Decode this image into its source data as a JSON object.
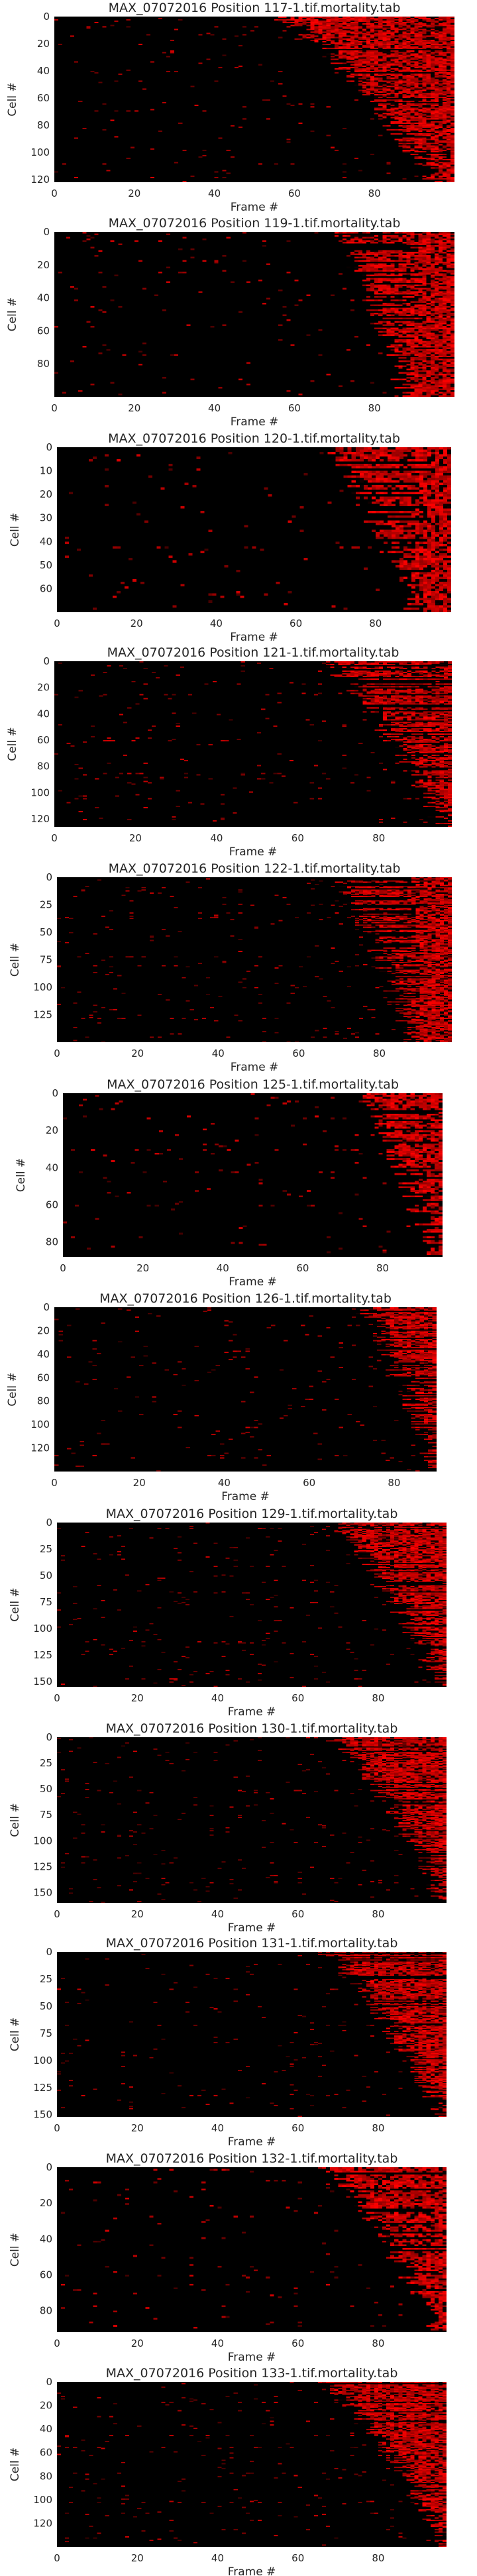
{
  "chart_data": [
    {
      "type": "heatmap",
      "title": "MAX_07072016 Position 117-1.tif.mortality.tab",
      "xlabel": "Frame #",
      "ylabel": "Cell #",
      "xlim": [
        0,
        100
      ],
      "ylim": [
        0,
        122
      ],
      "x_ticks": [
        0,
        20,
        40,
        60,
        80
      ],
      "y_ticks": [
        0,
        20,
        40,
        60,
        80,
        100,
        120
      ],
      "colormap": [
        "#000000",
        "#ff0000"
      ],
      "onset_start_frame": 56,
      "onset_end_frame": 95,
      "late_onset_cells": 0.1,
      "grid": false,
      "legend": "none"
    },
    {
      "type": "heatmap",
      "title": "MAX_07072016 Position 119-1.tif.mortality.tab",
      "xlabel": "Frame #",
      "ylabel": "Cell #",
      "xlim": [
        0,
        100
      ],
      "ylim": [
        0,
        100
      ],
      "x_ticks": [
        0,
        20,
        40,
        60,
        80
      ],
      "y_ticks": [
        0,
        20,
        40,
        60,
        80
      ],
      "colormap": [
        "#000000",
        "#ff0000"
      ],
      "onset_start_frame": 69,
      "onset_end_frame": 88,
      "late_onset_cells": 0.3,
      "grid": false,
      "legend": "none"
    },
    {
      "type": "heatmap",
      "title": "MAX_07072016 Position 120-1.tif.mortality.tab",
      "xlabel": "Frame #",
      "ylabel": "Cell #",
      "xlim": [
        0,
        99
      ],
      "ylim": [
        0,
        70
      ],
      "x_ticks": [
        0,
        20,
        40,
        60,
        80
      ],
      "y_ticks": [
        0,
        10,
        20,
        30,
        40,
        50,
        60
      ],
      "colormap": [
        "#000000",
        "#ff0000"
      ],
      "onset_start_frame": 68,
      "onset_end_frame": 90,
      "late_onset_cells": 0.25,
      "grid": false,
      "legend": "none"
    },
    {
      "type": "heatmap",
      "title": "MAX_07072016 Position 121-1.tif.mortality.tab",
      "xlabel": "Frame #",
      "ylabel": "Cell #",
      "xlim": [
        0,
        98
      ],
      "ylim": [
        0,
        126
      ],
      "x_ticks": [
        0,
        20,
        40,
        60,
        80
      ],
      "y_ticks": [
        0,
        20,
        40,
        60,
        80,
        100,
        120
      ],
      "colormap": [
        "#000000",
        "#ff0000"
      ],
      "onset_start_frame": 66,
      "onset_end_frame": 96,
      "late_onset_cells": 0.15,
      "grid": false,
      "legend": "none"
    },
    {
      "type": "heatmap",
      "title": "MAX_07072016 Position 122-1.tif.mortality.tab",
      "xlabel": "Frame #",
      "ylabel": "Cell #",
      "xlim": [
        0,
        98
      ],
      "ylim": [
        0,
        150
      ],
      "x_ticks": [
        0,
        20,
        40,
        60,
        80
      ],
      "y_ticks": [
        0,
        25,
        50,
        75,
        100,
        125
      ],
      "colormap": [
        "#000000",
        "#ff0000"
      ],
      "onset_start_frame": 68,
      "onset_end_frame": 88,
      "late_onset_cells": 0.35,
      "grid": false,
      "legend": "none"
    },
    {
      "type": "heatmap",
      "title": "MAX_07072016 Position 125-1.tif.mortality.tab",
      "xlabel": "Frame #",
      "ylabel": "Cell #",
      "xlim": [
        0,
        95
      ],
      "ylim": [
        0,
        88
      ],
      "x_ticks": [
        0,
        20,
        40,
        60,
        80
      ],
      "y_ticks": [
        0,
        20,
        40,
        60,
        80
      ],
      "colormap": [
        "#000000",
        "#ff0000"
      ],
      "onset_start_frame": 74,
      "onset_end_frame": 93,
      "late_onset_cells": 0.2,
      "grid": false,
      "legend": "none"
    },
    {
      "type": "heatmap",
      "title": "MAX_07072016 Position 126-1.tif.mortality.tab",
      "xlabel": "Frame #",
      "ylabel": "Cell #",
      "xlim": [
        0,
        90
      ],
      "ylim": [
        0,
        140
      ],
      "x_ticks": [
        0,
        20,
        40,
        60,
        80
      ],
      "y_ticks": [
        0,
        20,
        40,
        60,
        80,
        100,
        120
      ],
      "colormap": [
        "#000000",
        "#ff0000"
      ],
      "onset_start_frame": 72,
      "onset_end_frame": 90,
      "late_onset_cells": 0.15,
      "grid": false,
      "legend": "none"
    },
    {
      "type": "heatmap",
      "title": "MAX_07072016 Position 129-1.tif.mortality.tab",
      "xlabel": "Frame #",
      "ylabel": "Cell #",
      "xlim": [
        0,
        97
      ],
      "ylim": [
        0,
        155
      ],
      "x_ticks": [
        0,
        20,
        40,
        60,
        80
      ],
      "y_ticks": [
        0,
        25,
        50,
        75,
        100,
        125,
        150
      ],
      "colormap": [
        "#000000",
        "#ff0000"
      ],
      "onset_start_frame": 68,
      "onset_end_frame": 96,
      "late_onset_cells": 0.1,
      "grid": false,
      "legend": "none"
    },
    {
      "type": "heatmap",
      "title": "MAX_07072016 Position 130-1.tif.mortality.tab",
      "xlabel": "Frame #",
      "ylabel": "Cell #",
      "xlim": [
        0,
        97
      ],
      "ylim": [
        0,
        160
      ],
      "x_ticks": [
        0,
        20,
        40,
        60,
        80
      ],
      "y_ticks": [
        0,
        25,
        50,
        75,
        100,
        125,
        150
      ],
      "colormap": [
        "#000000",
        "#ff0000"
      ],
      "onset_start_frame": 68,
      "onset_end_frame": 96,
      "late_onset_cells": 0.1,
      "grid": false,
      "legend": "none"
    },
    {
      "type": "heatmap",
      "title": "MAX_07072016 Position 131-1.tif.mortality.tab",
      "xlabel": "Frame #",
      "ylabel": "Cell #",
      "xlim": [
        0,
        97
      ],
      "ylim": [
        0,
        152
      ],
      "x_ticks": [
        0,
        20,
        40,
        60,
        80
      ],
      "y_ticks": [
        0,
        25,
        50,
        75,
        100,
        125,
        150
      ],
      "colormap": [
        "#000000",
        "#ff0000"
      ],
      "onset_start_frame": 66,
      "onset_end_frame": 96,
      "late_onset_cells": 0.1,
      "grid": false,
      "legend": "none"
    },
    {
      "type": "heatmap",
      "title": "MAX_07072016 Position 132-1.tif.mortality.tab",
      "xlabel": "Frame #",
      "ylabel": "Cell #",
      "xlim": [
        0,
        97
      ],
      "ylim": [
        0,
        92
      ],
      "x_ticks": [
        0,
        20,
        40,
        60,
        80
      ],
      "y_ticks": [
        0,
        20,
        40,
        60,
        80
      ],
      "colormap": [
        "#000000",
        "#ff0000"
      ],
      "onset_start_frame": 67,
      "onset_end_frame": 95,
      "late_onset_cells": 0.15,
      "grid": false,
      "legend": "none"
    },
    {
      "type": "heatmap",
      "title": "MAX_07072016 Position 133-1.tif.mortality.tab",
      "xlabel": "Frame #",
      "ylabel": "Cell #",
      "xlim": [
        0,
        97
      ],
      "ylim": [
        0,
        140
      ],
      "x_ticks": [
        0,
        20,
        40,
        60,
        80
      ],
      "y_ticks": [
        0,
        20,
        40,
        60,
        80,
        100,
        120
      ],
      "colormap": [
        "#000000",
        "#ff0000"
      ],
      "onset_start_frame": 66,
      "onset_end_frame": 97,
      "late_onset_cells": 0.1,
      "grid": false,
      "legend": "none"
    }
  ]
}
